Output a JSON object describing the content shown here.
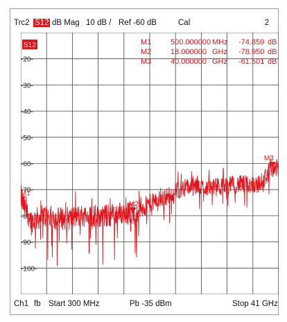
{
  "header": {
    "trace": "Trc2",
    "param": "S12",
    "format": "dB Mag",
    "scale": "10 dB /",
    "ref": "Ref -60 dB",
    "cal": "Cal",
    "channel_num": "2"
  },
  "trace_badge": "S12",
  "y_ticks": [
    "-20-",
    "-30-",
    "-40-",
    "-50-",
    "-60-",
    "-70-",
    "-80-",
    "-90-",
    "-100-"
  ],
  "markers": [
    {
      "name": "M1",
      "x": "500.000000",
      "xunit": "MHz",
      "y": "-74.859",
      "yunit": "dB"
    },
    {
      "name": "M2",
      "x": "18.000000",
      "xunit": "GHz",
      "y": "-78.950",
      "yunit": "dB"
    },
    {
      "name": "M3",
      "x": "40.000000",
      "xunit": "GHz",
      "y": "-61.501",
      "yunit": "dB"
    }
  ],
  "marker_labels": {
    "m1": "M1",
    "m2": "M2",
    "m3": "M3"
  },
  "footer": {
    "channel": "Ch1",
    "fb": "fb",
    "start": "Start 300 MHz",
    "power": "Pb  -35 dBm",
    "stop": "Stop 41 GHz"
  },
  "colors": {
    "trace": "#e2141c",
    "grid": "#444444"
  },
  "chart_data": {
    "type": "line",
    "x_range_ghz": [
      0.3,
      41
    ],
    "ylim": [
      -110,
      -10
    ],
    "y_per_div_db": 10,
    "ref_db": -60,
    "series": [
      {
        "x_ghz": [
          0.3,
          0.5,
          2,
          4,
          6,
          8,
          10,
          12,
          14,
          16,
          18,
          20,
          22,
          24,
          26,
          28,
          30,
          32,
          34,
          36,
          38,
          40,
          41
        ],
        "y_db": [
          -72,
          -74.859,
          -82,
          -80,
          -81,
          -81,
          -80,
          -80,
          -80,
          -79,
          -78.95,
          -76,
          -74,
          -72,
          -69,
          -69,
          -69,
          -69,
          -68,
          -68,
          -68,
          -61.501,
          -62
        ]
      }
    ]
  }
}
